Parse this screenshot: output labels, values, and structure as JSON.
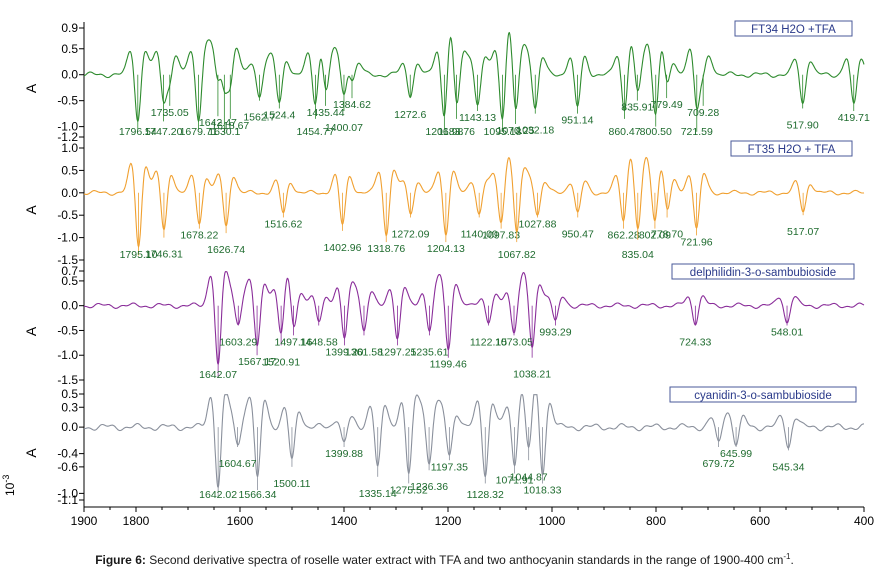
{
  "caption": {
    "label": "Figure 6:",
    "text": "Second derivative spectra of roselle water extract with TFA and two anthocyanin standards in the range of 1900-400 cm",
    "unit_sup": "-1",
    "end": "."
  },
  "chart_data": {
    "type": "line",
    "x_axis": {
      "range": [
        1900,
        400
      ],
      "reversed": true,
      "ticks": [
        1900,
        1800,
        1600,
        1400,
        1200,
        1000,
        800,
        600,
        400
      ],
      "tick_labels": [
        "1900",
        "1800",
        "1600",
        "1400",
        "1200",
        "1000",
        "800",
        "600",
        "400"
      ]
    },
    "y_label": "A",
    "y_multiplier": "10",
    "y_multiplier_exp": "-3",
    "grid": false,
    "panels": [
      {
        "name": "FT34 H2O +TFA",
        "color": "#2e8b2e",
        "ylim": [
          -1.2,
          0.9
        ],
        "yticks": [
          0.9,
          0.5,
          0.0,
          -0.5,
          -1.0,
          -1.2
        ],
        "ytick_labels": [
          "0.9",
          "0.5",
          "0.0",
          "-0.5",
          "-1.0",
          "-1.2"
        ],
        "peaks": [
          {
            "x": 1796.54,
            "y": -1.05,
            "label": "1796.54"
          },
          {
            "x": 1747.2,
            "y": -0.9,
            "label": "1747.20"
          },
          {
            "x": 1735.05,
            "y": -0.6,
            "label": "1735.05"
          },
          {
            "x": 1679.71,
            "y": -1.05,
            "label": "1679.71"
          },
          {
            "x": 1642.47,
            "y": -0.8,
            "label": "1642.47"
          },
          {
            "x": 1618.67,
            "y": -0.85,
            "label": "1618.67"
          },
          {
            "x": 1630.1,
            "y": -1.12,
            "label": "1630.1"
          },
          {
            "x": 1562.7,
            "y": -0.5,
            "label": "1562.7"
          },
          {
            "x": 1524.4,
            "y": -0.65,
            "label": "1524.4"
          },
          {
            "x": 1454.77,
            "y": -0.85,
            "label": "1454.77"
          },
          {
            "x": 1435.44,
            "y": -0.6,
            "label": "1435.44"
          },
          {
            "x": 1400.07,
            "y": -0.7,
            "label": "1400.07"
          },
          {
            "x": 1384.62,
            "y": -0.45,
            "label": "1384.62"
          },
          {
            "x": 1272.6,
            "y": -0.45,
            "label": "1272.6"
          },
          {
            "x": 1206.98,
            "y": -1.05,
            "label": "1206.98"
          },
          {
            "x": 1183.76,
            "y": -0.85,
            "label": "1183.76"
          },
          {
            "x": 1143.13,
            "y": -0.7,
            "label": "1143.13"
          },
          {
            "x": 1095.18,
            "y": -1.1,
            "label": "1095.18"
          },
          {
            "x": 1070.25,
            "y": -0.95,
            "label": "1070.25"
          },
          {
            "x": 1032.18,
            "y": -0.75,
            "label": "1032.18"
          },
          {
            "x": 951.14,
            "y": -0.75,
            "label": "951.14"
          },
          {
            "x": 860.47,
            "y": -0.85,
            "label": "860.47"
          },
          {
            "x": 835.91,
            "y": -0.5,
            "label": "835.91"
          },
          {
            "x": 800.5,
            "y": -1.0,
            "label": "800.50"
          },
          {
            "x": 779.49,
            "y": -0.45,
            "label": "779.49"
          },
          {
            "x": 721.59,
            "y": -1.1,
            "label": "721.59"
          },
          {
            "x": 709.28,
            "y": -0.6,
            "label": "709.28"
          },
          {
            "x": 517.9,
            "y": -0.65,
            "label": "517.90"
          },
          {
            "x": 419.71,
            "y": -0.7,
            "label": "419.71"
          }
        ]
      },
      {
        "name": "FT35 H2O + TFA",
        "color": "#f0a030",
        "ylim": [
          -1.5,
          1.0
        ],
        "yticks": [
          1.0,
          0.5,
          0.0,
          -0.5,
          -1.0,
          -1.5
        ],
        "ytick_labels": [
          "1.0",
          "0.5",
          "0.0",
          "-0.5",
          "-1.0",
          "-1.5"
        ],
        "peaks": [
          {
            "x": 1795.1,
            "y": -1.4,
            "label": "1795.10"
          },
          {
            "x": 1746.31,
            "y": -1.0,
            "label": "1746.31"
          },
          {
            "x": 1678.22,
            "y": -0.8,
            "label": "1678.22"
          },
          {
            "x": 1626.74,
            "y": -0.9,
            "label": "1626.74"
          },
          {
            "x": 1516.62,
            "y": -0.55,
            "label": "1516.62"
          },
          {
            "x": 1402.96,
            "y": -0.85,
            "label": "1402.96"
          },
          {
            "x": 1318.76,
            "y": -1.1,
            "label": "1318.76"
          },
          {
            "x": 1272.09,
            "y": -0.55,
            "label": "1272.09"
          },
          {
            "x": 1204.13,
            "y": -1.1,
            "label": "1204.13"
          },
          {
            "x": 1140.0,
            "y": -0.55,
            "label": "1140.00"
          },
          {
            "x": 1097.83,
            "y": -0.8,
            "label": "1097.83"
          },
          {
            "x": 1067.82,
            "y": -1.1,
            "label": "1067.82"
          },
          {
            "x": 1027.88,
            "y": -0.55,
            "label": "1027.88"
          },
          {
            "x": 950.47,
            "y": -0.55,
            "label": "950.47"
          },
          {
            "x": 862.28,
            "y": -0.8,
            "label": "862.28"
          },
          {
            "x": 835.04,
            "y": -1.05,
            "label": "835.04"
          },
          {
            "x": 802.09,
            "y": -0.8,
            "label": "802.09"
          },
          {
            "x": 778.7,
            "y": -0.55,
            "label": "778.70"
          },
          {
            "x": 721.96,
            "y": -0.95,
            "label": "721.96"
          },
          {
            "x": 517.07,
            "y": -0.5,
            "label": "517.07"
          }
        ]
      },
      {
        "name": "delphilidin-3-o-sambubioside",
        "color": "#8a2e9a",
        "ylim": [
          -1.5,
          0.7
        ],
        "yticks": [
          0.7,
          0.5,
          0.0,
          -0.5,
          -1.0,
          -1.5
        ],
        "ytick_labels": [
          "0.7",
          "0.5",
          "0.0",
          "-0.5",
          "-1.0",
          "-1.5"
        ],
        "peaks": [
          {
            "x": 1642.07,
            "y": -1.45,
            "label": "1642.07"
          },
          {
            "x": 1603.29,
            "y": -0.4,
            "label": "1603.29"
          },
          {
            "x": 1567.17,
            "y": -1.0,
            "label": "1567.17"
          },
          {
            "x": 1520.91,
            "y": -0.8,
            "label": "1520.91"
          },
          {
            "x": 1497.16,
            "y": -0.6,
            "label": "1497.16"
          },
          {
            "x": 1448.58,
            "y": -0.4,
            "label": "1448.58"
          },
          {
            "x": 1399.2,
            "y": -0.8,
            "label": "1399.20"
          },
          {
            "x": 1361.58,
            "y": -0.6,
            "label": "1361.58"
          },
          {
            "x": 1297.25,
            "y": -0.8,
            "label": "1297.25"
          },
          {
            "x": 1235.61,
            "y": -0.6,
            "label": "1235.61"
          },
          {
            "x": 1199.46,
            "y": -1.05,
            "label": "1199.46"
          },
          {
            "x": 1122.15,
            "y": -0.4,
            "label": "1122.15"
          },
          {
            "x": 1073.05,
            "y": -0.6,
            "label": "1073.05"
          },
          {
            "x": 1038.21,
            "y": -1.05,
            "label": "1038.21"
          },
          {
            "x": 993.29,
            "y": -0.4,
            "label": "993.29"
          },
          {
            "x": 724.33,
            "y": -0.4,
            "label": "724.33"
          },
          {
            "x": 548.01,
            "y": -0.4,
            "label": "548.01"
          }
        ]
      },
      {
        "name": "cyanidin-3-o-sambubioside",
        "color": "#8a909c",
        "ylim": [
          -1.1,
          0.5
        ],
        "yticks": [
          0.5,
          0.3,
          0.0,
          -0.4,
          -0.6,
          -1.0,
          -1.1
        ],
        "ytick_labels": [
          "0.5",
          "0.3",
          "0.0",
          "-0.4",
          "-0.6",
          "-1.0",
          "-1.1"
        ],
        "peaks": [
          {
            "x": 1642.02,
            "y": -1.05,
            "label": "1642.02"
          },
          {
            "x": 1604.67,
            "y": -0.3,
            "label": "1604.67"
          },
          {
            "x": 1566.34,
            "y": -0.95,
            "label": "1566.34"
          },
          {
            "x": 1500.11,
            "y": -0.6,
            "label": "1500.11"
          },
          {
            "x": 1399.88,
            "y": -0.3,
            "label": "1399.88"
          },
          {
            "x": 1335.14,
            "y": -0.75,
            "label": "1335.14"
          },
          {
            "x": 1275.52,
            "y": -0.85,
            "label": "1275.52"
          },
          {
            "x": 1236.36,
            "y": -0.65,
            "label": "1236.36"
          },
          {
            "x": 1197.35,
            "y": -0.5,
            "label": "1197.35"
          },
          {
            "x": 1128.32,
            "y": -0.85,
            "label": "1128.32"
          },
          {
            "x": 1071.91,
            "y": -0.7,
            "label": "1071.91"
          },
          {
            "x": 1044.87,
            "y": -0.5,
            "label": "1044.87"
          },
          {
            "x": 1018.33,
            "y": -0.85,
            "label": "1018.33"
          },
          {
            "x": 679.72,
            "y": -0.3,
            "label": "679.72"
          },
          {
            "x": 645.99,
            "y": -0.3,
            "label": "645.99"
          },
          {
            "x": 545.34,
            "y": -0.35,
            "label": "545.34"
          }
        ]
      }
    ]
  }
}
